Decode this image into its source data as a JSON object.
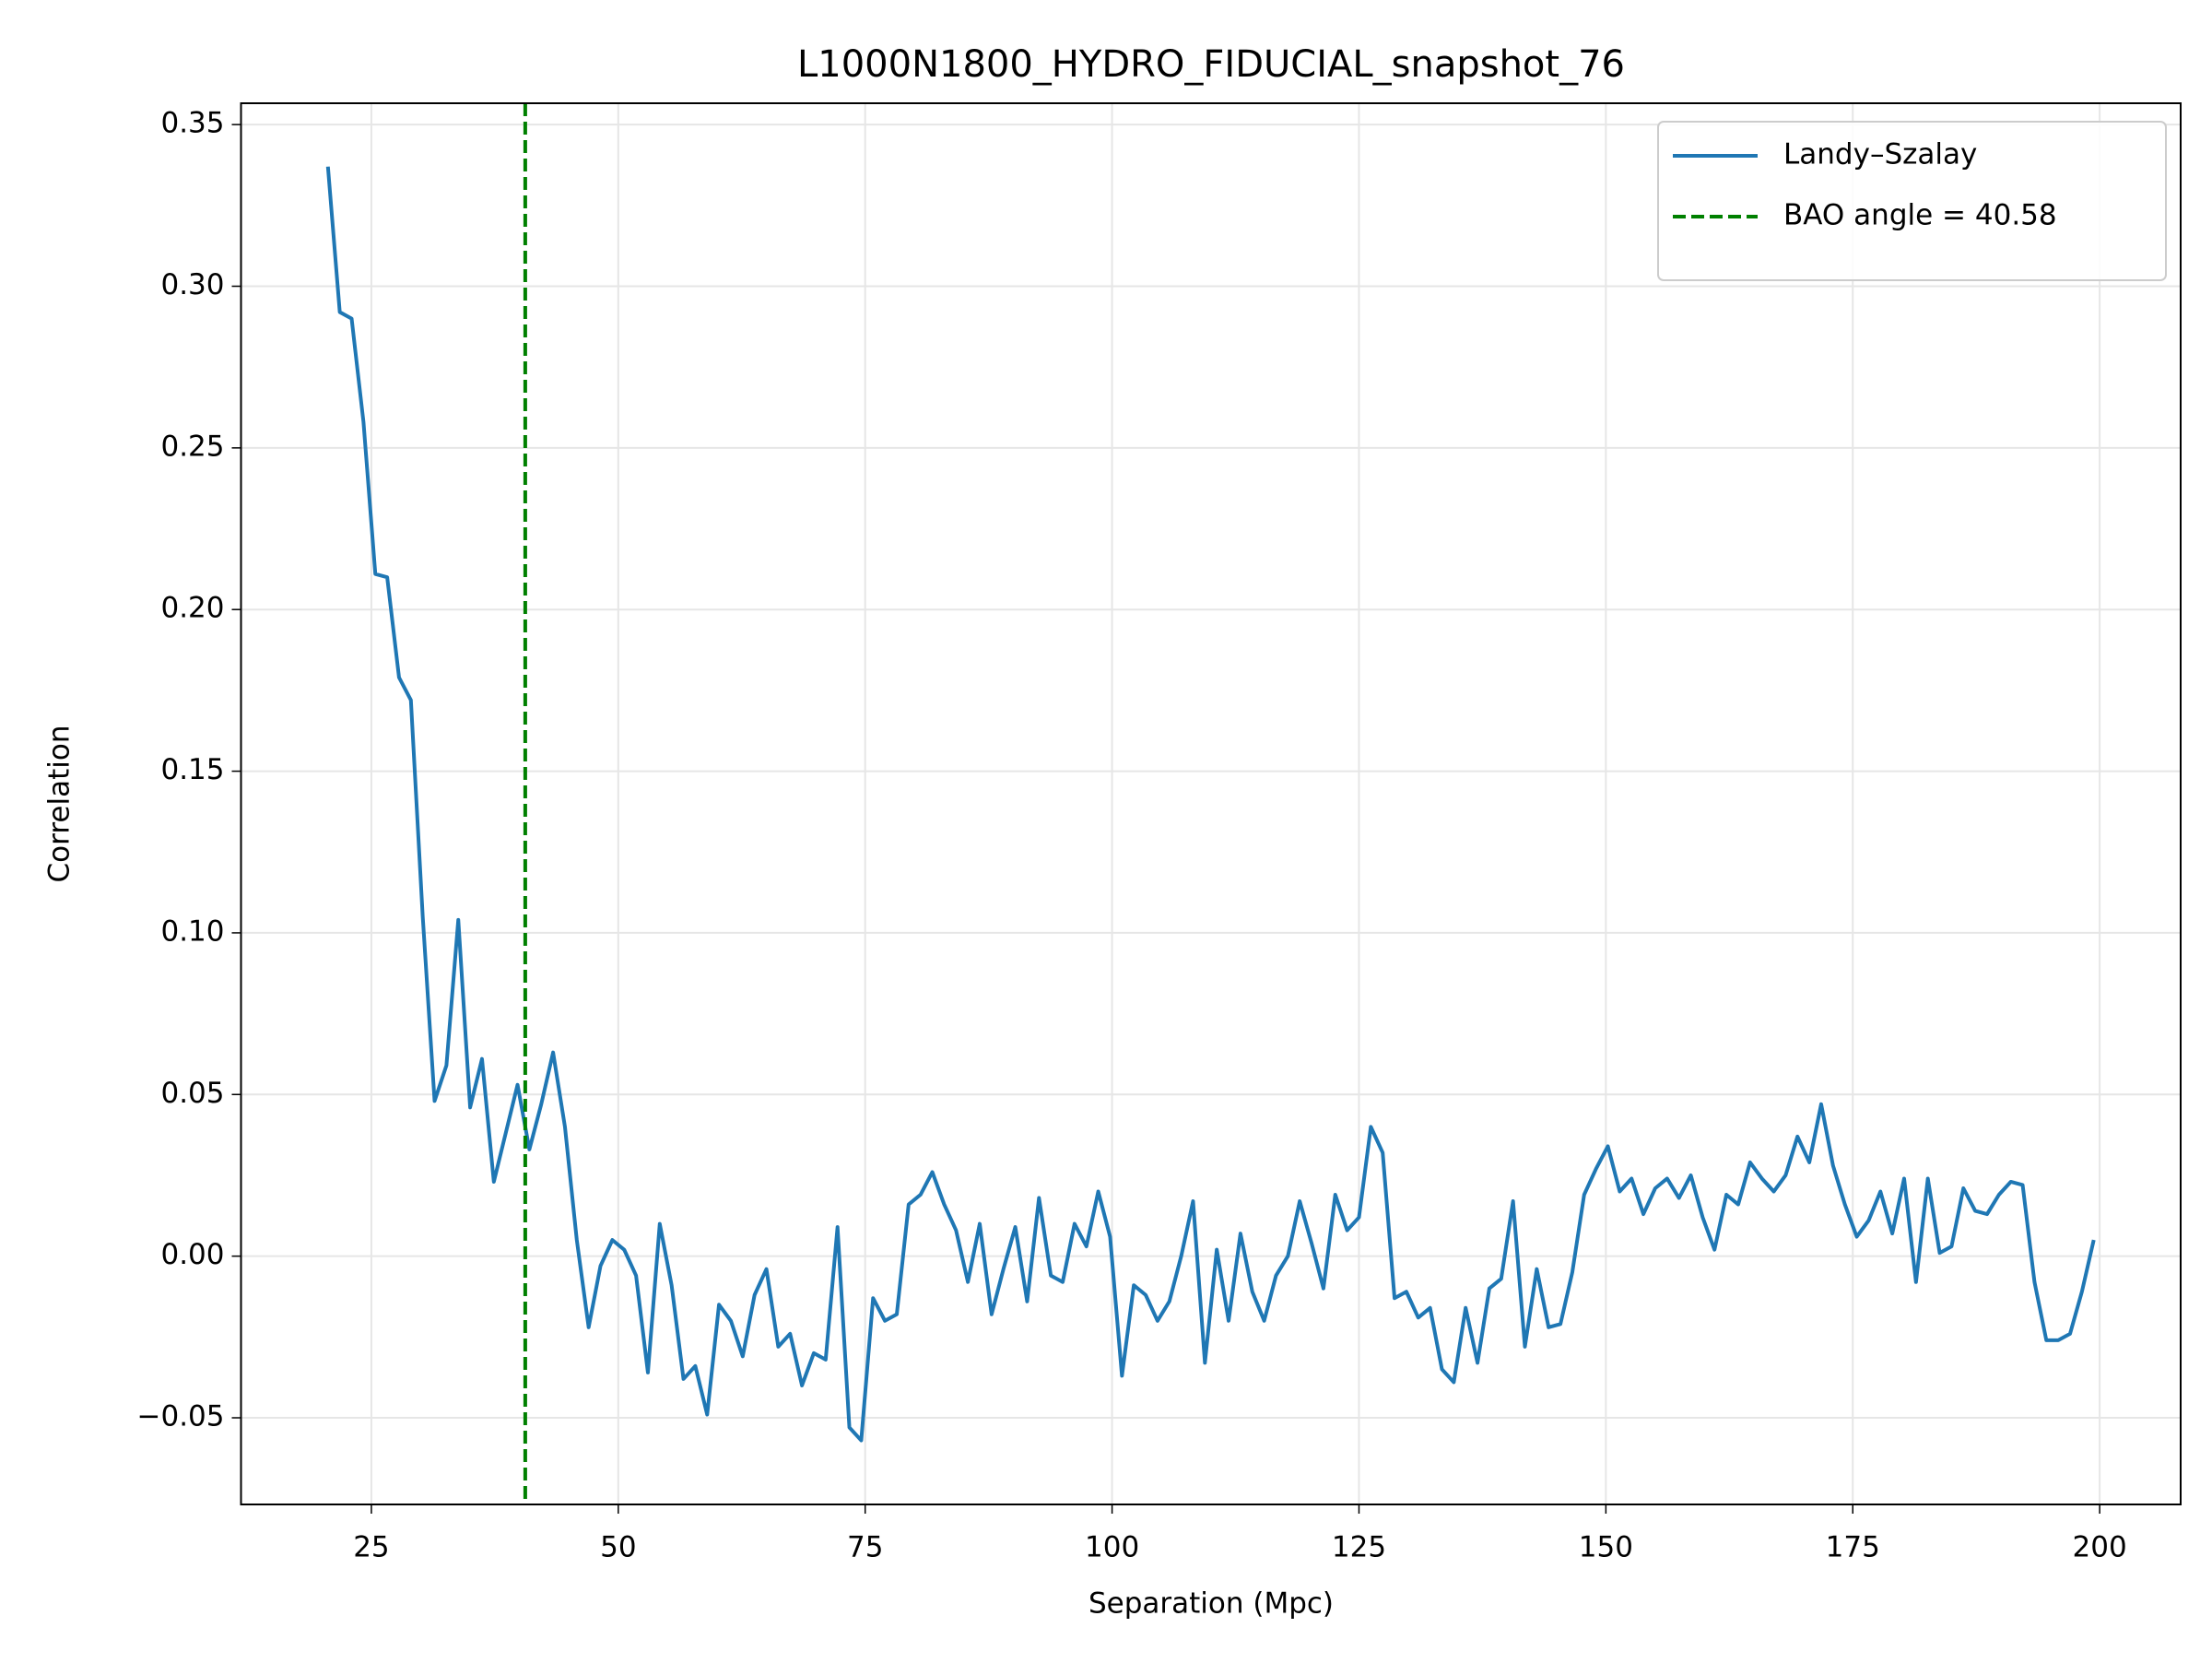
{
  "chart_data": {
    "type": "line",
    "title": "L1000N1800_HYDRO_FIDUCIAL_snapshot_76",
    "xlabel": "Separation (Mpc)",
    "ylabel": "Correlation",
    "x": [
      20.6,
      21.8,
      23.0,
      24.2,
      25.4,
      26.6,
      27.8,
      29.0,
      30.2,
      31.4,
      32.6,
      33.8,
      35.0,
      36.2,
      37.4,
      38.6,
      39.8,
      41.0,
      42.2,
      43.4,
      44.6,
      45.8,
      47.0,
      48.2,
      49.4,
      50.6,
      51.8,
      53.0,
      54.2,
      55.4,
      56.6,
      57.8,
      59.0,
      60.2,
      61.4,
      62.6,
      63.8,
      65.0,
      66.2,
      67.4,
      68.6,
      69.8,
      71.0,
      72.2,
      73.4,
      74.6,
      75.8,
      77.0,
      78.2,
      79.4,
      80.6,
      81.8,
      83.0,
      84.2,
      85.4,
      86.6,
      87.8,
      89.0,
      90.2,
      91.4,
      92.6,
      93.8,
      95.0,
      96.2,
      97.4,
      98.6,
      99.8,
      101.0,
      102.2,
      103.4,
      104.6,
      105.8,
      107.0,
      108.2,
      109.4,
      110.6,
      111.8,
      113.0,
      114.2,
      115.4,
      116.6,
      117.8,
      119.0,
      120.2,
      121.4,
      122.6,
      123.8,
      125.0,
      126.2,
      127.4,
      128.6,
      129.8,
      131.0,
      132.2,
      133.4,
      134.6,
      135.8,
      137.0,
      138.2,
      139.4,
      140.6,
      141.8,
      143.0,
      144.2,
      145.4,
      146.6,
      147.8,
      149.0,
      150.2,
      151.4,
      152.6,
      153.8,
      155.0,
      156.2,
      157.4,
      158.6,
      159.8,
      161.0,
      162.2,
      163.4,
      164.6,
      165.8,
      167.0,
      168.2,
      169.4,
      170.6,
      171.8,
      173.0,
      174.2,
      175.4,
      176.6,
      177.8,
      179.0,
      180.2,
      181.4,
      182.6,
      183.8,
      185.0,
      186.2,
      187.4,
      188.6,
      189.8,
      191.0,
      192.2,
      193.4,
      194.6,
      195.8,
      197.0,
      198.2,
      199.4
    ],
    "series": [
      {
        "name": "Landy–Szalay",
        "color": "#1f77b4",
        "values": [
          0.337,
          0.292,
          0.29,
          0.258,
          0.211,
          0.21,
          0.179,
          0.172,
          0.105,
          0.048,
          0.059,
          0.104,
          0.046,
          0.061,
          0.023,
          0.038,
          0.053,
          0.033,
          0.047,
          0.063,
          0.04,
          0.005,
          -0.022,
          -0.003,
          0.005,
          0.002,
          -0.006,
          -0.036,
          0.01,
          -0.009,
          -0.038,
          -0.034,
          -0.049,
          -0.015,
          -0.02,
          -0.031,
          -0.012,
          -0.004,
          -0.028,
          -0.024,
          -0.04,
          -0.03,
          -0.032,
          0.009,
          -0.053,
          -0.057,
          -0.013,
          -0.02,
          -0.018,
          0.016,
          0.019,
          0.026,
          0.016,
          0.008,
          -0.008,
          0.01,
          -0.018,
          -0.004,
          0.009,
          -0.014,
          0.018,
          -0.006,
          -0.008,
          0.01,
          0.003,
          0.02,
          0.006,
          -0.037,
          -0.009,
          -0.012,
          -0.02,
          -0.014,
          0.0,
          0.017,
          -0.033,
          0.002,
          -0.02,
          0.007,
          -0.011,
          -0.02,
          -0.006,
          0.0,
          0.017,
          0.004,
          -0.01,
          0.019,
          0.008,
          0.012,
          0.04,
          0.032,
          -0.013,
          -0.011,
          -0.019,
          -0.016,
          -0.035,
          -0.039,
          -0.016,
          -0.033,
          -0.01,
          -0.007,
          0.017,
          -0.028,
          -0.004,
          -0.022,
          -0.021,
          -0.005,
          0.019,
          0.027,
          0.034,
          0.02,
          0.024,
          0.013,
          0.021,
          0.024,
          0.018,
          0.025,
          0.012,
          0.002,
          0.019,
          0.016,
          0.029,
          0.024,
          0.02,
          0.025,
          0.037,
          0.029,
          0.047,
          0.028,
          0.016,
          0.006,
          0.011,
          0.02,
          0.007,
          0.024,
          -0.008,
          0.024,
          0.001,
          0.003,
          0.021,
          0.014,
          0.013,
          0.019,
          0.023,
          0.022,
          -0.008,
          -0.026,
          -0.026,
          -0.024,
          -0.011,
          0.005
        ]
      }
    ],
    "vline": {
      "name": "BAO angle = 40.58",
      "value": 40.58,
      "color": "#008000"
    },
    "xlim": [
      11.8,
      208.2
    ],
    "ylim": [
      -0.0768,
      0.3566
    ],
    "xticks": [
      25,
      50,
      75,
      100,
      125,
      150,
      175,
      200
    ],
    "yticks": [
      {
        "value": -0.05,
        "label": "−0.05"
      },
      {
        "value": 0,
        "label": "0.00"
      },
      0.05,
      {
        "value": 0.1,
        "label": "0.10"
      },
      0.15,
      {
        "value": 0.2,
        "label": "0.20"
      },
      0.25,
      {
        "value": 0.3,
        "label": "0.30"
      },
      0.35
    ],
    "grid": true,
    "legend": "upper right"
  }
}
